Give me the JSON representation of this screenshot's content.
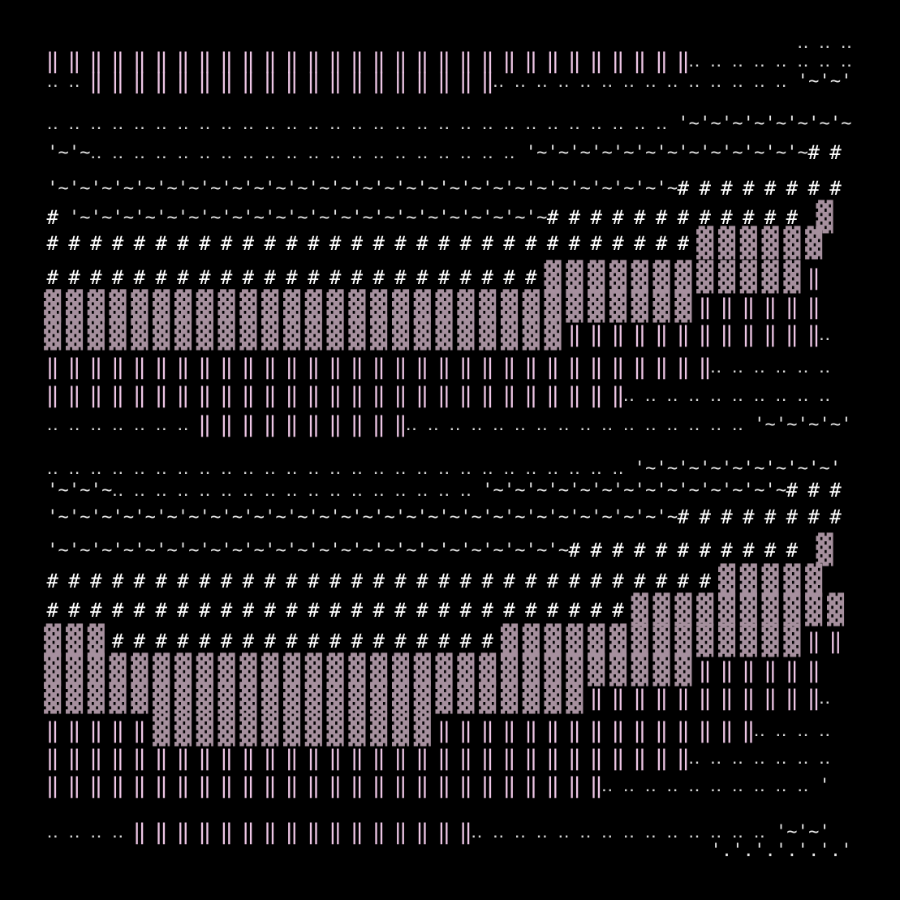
{
  "rows": [
    "                                                                     ‥ ‥ ‥",
    "‖ ‖ ‖ ‖ ‖ ‖ ‖ ‖ ‖ ‖ ‖ ‖ ‖ ‖ ‖ ‖ ‖ ‖ ‖ ‖ ‖ ‖ ‖ ‖ ‖ ‖ ‖ ‖ ‖ ‖‥ ‥ ‥ ‥ ‥ ‥ ‥ ‥",
    "‥ ‥ ‖ ‖ ‖ ‖ ‖ ‖ ‖ ‖ ‖ ‖ ‖ ‖ ‖ ‖ ‖ ‖ ‖ ‖ ‖‥ ‥ ‥ ‥ ‥ ‥ ‥ ‥ ‥ ‥ ‥ ‥ ‥ ‥ '~'~'",
    "‥ ‥ ‥ ‥ ‥ ‥ ‥ ‥ ‥ ‥ ‥ ‥ ‥ ‥ ‥ ‥ ‥ ‥ ‥ ‥ ‥ ‥ ‥ ‥ ‥ ‥ ‥ ‥ ‥ '~'~'~'~'~'~'~'~",
    "'~'~‥ ‥ ‥ ‥ ‥ ‥ ‥ ‥ ‥ ‥ ‥ ‥ ‥ ‥ ‥ ‥ ‥ ‥ ‥ ‥ '~'~'~'~'~'~'~'~'~'~'~'~'~# #",
    "'~'~'~'~'~'~'~'~'~'~'~'~'~'~'~'~'~'~'~'~'~'~'~'~'~'~'~'~'~# # # # # # # #",
    "# '~'~'~'~'~'~'~'~'~'~'~'~'~'~'~'~'~'~'~'~'~'~# # # # # # # # # # # #  ▓",
    "# # # # # # # # # # # # # # # # # # # # # # # # # # # # # # ▓ ▓ ▓ ▓ ▓ ▓",
    "# # # # # # # # # # # # # # # # # # # # # # # ▓ ▓ ▓ ▓ ▓ ▓ ▓ ▓ ▓ ▓ ▓ ▓ ‖",
    "▓ ▓ ▓ ▓ ▓ ▓ ▓ ▓ ▓ ▓ ▓ ▓ ▓ ▓ ▓ ▓ ▓ ▓ ▓ ▓ ▓ ▓ ▓ ▓ ▓ ▓ ▓ ▓ ▓ ▓ ‖ ‖ ‖ ‖ ‖ ‖",
    "▓ ▓ ▓ ▓ ▓ ▓ ▓ ▓ ▓ ▓ ▓ ▓ ▓ ▓ ▓ ▓ ▓ ▓ ▓ ▓ ▓ ▓ ▓ ▓ ‖ ‖ ‖ ‖ ‖ ‖ ‖ ‖ ‖ ‖ ‖ ‖‥",
    "‖ ‖ ‖ ‖ ‖ ‖ ‖ ‖ ‖ ‖ ‖ ‖ ‖ ‖ ‖ ‖ ‖ ‖ ‖ ‖ ‖ ‖ ‖ ‖ ‖ ‖ ‖ ‖ ‖ ‖ ‖‥ ‥ ‥ ‥ ‥ ‥",
    "‖ ‖ ‖ ‖ ‖ ‖ ‖ ‖ ‖ ‖ ‖ ‖ ‖ ‖ ‖ ‖ ‖ ‖ ‖ ‖ ‖ ‖ ‖ ‖ ‖ ‖ ‖‥ ‥ ‥ ‥ ‥ ‥ ‥ ‥ ‥ ‥",
    "‥ ‥ ‥ ‥ ‥ ‥ ‥ ‖ ‖ ‖ ‖ ‖ ‖ ‖ ‖ ‖ ‖‥ ‥ ‥ ‥ ‥ ‥ ‥ ‥ ‥ ‥ ‥ ‥ ‥ ‥ ‥ ‥ '~'~'~'~'",
    "‥ ‥ ‥ ‥ ‥ ‥ ‥ ‥ ‥ ‥ ‥ ‥ ‥ ‥ ‥ ‥ ‥ ‥ ‥ ‥ ‥ ‥ ‥ ‥ ‥ ‥ ‥ '~'~'~'~'~'~'~'~'~'",
    "'~'~'~‥ ‥ ‥ ‥ ‥ ‥ ‥ ‥ ‥ ‥ ‥ ‥ ‥ ‥ ‥ ‥ ‥ '~'~'~'~'~'~'~'~'~'~'~'~'~'~# # #",
    "'~'~'~'~'~'~'~'~'~'~'~'~'~'~'~'~'~'~'~'~'~'~'~'~'~'~'~'~'~# # # # # # # #",
    "'~'~'~'~'~'~'~'~'~'~'~'~'~'~'~'~'~'~'~'~'~'~'~'~# # # # # # # # # # #  ▓",
    "# # # # # # # # # # # # # # # # # # # # # # # # # # # # # # # ▓ ▓ ▓ ▓ ▓",
    "# # # # # # # # # # # # # # # # # # # # # # # # # # # ▓ ▓ ▓ ▓ ▓ ▓ ▓ ▓ ▓ ▓",
    "▓ ▓ ▓ # # # # # # # # # # # # # # # # # # ▓ ▓ ▓ ▓ ▓ ▓ ▓ ▓ ▓ ▓ ▓ ▓ ▓ ▓ ‖ ‖",
    "▓ ▓ ▓ ▓ ▓ ▓ ▓ ▓ ▓ ▓ ▓ ▓ ▓ ▓ ▓ ▓ ▓ ▓ ▓ ▓ ▓ ▓ ▓ ▓ ▓ ▓ ▓ ▓ ▓ ▓ ‖ ‖ ‖ ‖ ‖ ‖",
    "▓ ▓ ▓ ▓ ▓ ▓ ▓ ▓ ▓ ▓ ▓ ▓ ▓ ▓ ▓ ▓ ▓ ▓ ▓ ▓ ▓ ▓ ▓ ▓ ▓ ‖ ‖ ‖ ‖ ‖ ‖ ‖ ‖ ‖ ‖ ‖‥",
    "‖ ‖ ‖ ‖ ‖ ▓ ▓ ▓ ▓ ▓ ▓ ▓ ▓ ▓ ▓ ▓ ▓ ▓ ‖ ‖ ‖ ‖ ‖ ‖ ‖ ‖ ‖ ‖ ‖ ‖ ‖ ‖ ‖‥ ‥ ‥ ‥",
    "‖ ‖ ‖ ‖ ‖ ‖ ‖ ‖ ‖ ‖ ‖ ‖ ‖ ‖ ‖ ‖ ‖ ‖ ‖ ‖ ‖ ‖ ‖ ‖ ‖ ‖ ‖ ‖ ‖ ‖‥ ‥ ‥ ‥ ‥ ‥ ‥",
    "‖ ‖ ‖ ‖ ‖ ‖ ‖ ‖ ‖ ‖ ‖ ‖ ‖ ‖ ‖ ‖ ‖ ‖ ‖ ‖ ‖ ‖ ‖ ‖ ‖ ‖‥ ‥ ‥ ‥ ‥ ‥ ‥ ‥ ‥ ‥ '",
    "‥ ‥ ‥ ‥ ‖ ‖ ‖ ‖ ‖ ‖ ‖ ‖ ‖ ‖ ‖ ‖ ‖ ‖ ‖ ‖‥ ‥ ‥ ‥ ‥ ‥ ‥ ‥ ‥ ‥ ‥ ‥ ‥ ‥ '~'~'",
    "                                                             '.'.'.'.'.'.'"
  ]
}
